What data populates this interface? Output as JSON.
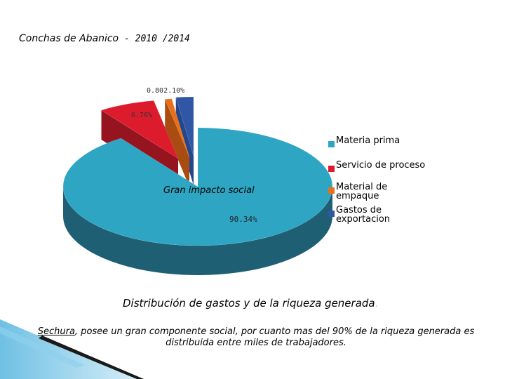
{
  "title": {
    "main": "Conchas de Abanico",
    "years": " - 2010 /2014"
  },
  "chart_data": {
    "type": "pie",
    "categories": [
      "Materia prima",
      "Servicio de proceso",
      "Material de empaque",
      "Gastos de exportacion"
    ],
    "values": [
      90.34,
      6.76,
      0.8,
      2.1
    ],
    "data_labels": [
      "90.34%",
      "6.76%",
      "0.80%",
      "2.10%"
    ],
    "overlap_label": "0.802.10%",
    "colors": [
      "#2ea6c3",
      "#dc1c2c",
      "#e8701c",
      "#2f57a5"
    ],
    "annotation": "Gran impacto social",
    "legend_position": "right",
    "three_d": true
  },
  "legend": {
    "items": [
      {
        "label": "Materia prima",
        "color": "#2ea6c3"
      },
      {
        "label": "Servicio de proceso",
        "color": "#dc1c2c"
      },
      {
        "label": "Material de empaque",
        "color": "#e8701c"
      },
      {
        "label": "Gastos de exportacion",
        "color": "#2f57a5"
      }
    ]
  },
  "caption": {
    "text": "Distribución de gastos y de la riqueza generada",
    "dot": "."
  },
  "footnote": "Sechura, posee un gran componente social, por cuanto mas del 90% de la riqueza generada es distribuida entre miles de trabajadores.",
  "footnote_underline": "Sechura"
}
